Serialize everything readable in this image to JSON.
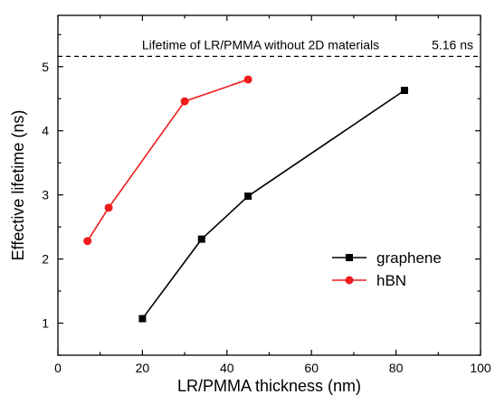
{
  "chart_data": {
    "type": "line",
    "xlabel": "LR/PMMA thickness (nm)",
    "ylabel": "Effective lifetime (ns)",
    "xlim": [
      0,
      100
    ],
    "ylim": [
      0.5,
      5.8
    ],
    "x_ticks": [
      0,
      20,
      40,
      60,
      80,
      100
    ],
    "y_ticks": [
      1,
      2,
      3,
      4,
      5
    ],
    "grid": false,
    "legend_position": "bottom-right",
    "series": [
      {
        "name": "graphene",
        "marker": "square",
        "color": "#000000",
        "x": [
          20,
          34,
          45,
          82
        ],
        "y": [
          1.07,
          2.31,
          2.98,
          4.63
        ]
      },
      {
        "name": "hBN",
        "marker": "circle",
        "color": "#ee1c1c",
        "x": [
          7,
          12,
          30,
          45
        ],
        "y": [
          2.28,
          2.8,
          4.46,
          4.8
        ]
      }
    ],
    "reference_line": {
      "y": 5.16,
      "style": "dashed",
      "label": "Lifetime of LR/PMMA without 2D materials",
      "value_label": "5.16 ns"
    }
  }
}
